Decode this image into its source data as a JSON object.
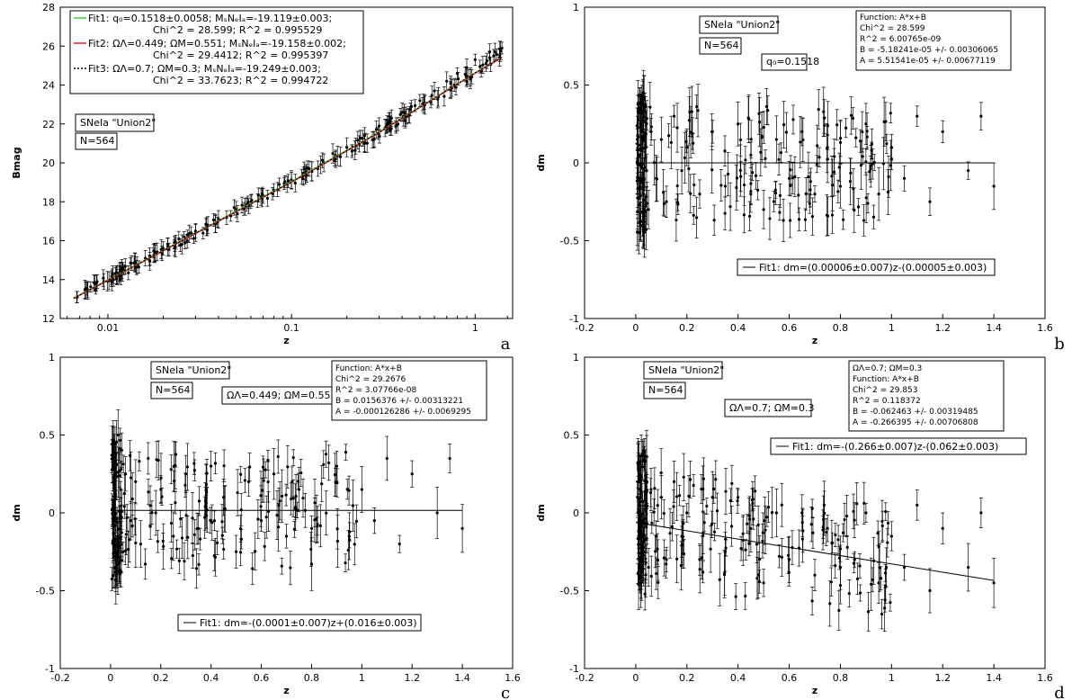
{
  "figure": {
    "panels": [
      {
        "id": "a",
        "letter": "a",
        "labels": {
          "sample": "SNeIa \"Union2\"",
          "count": "N=564"
        },
        "legend": [
          {
            "color": "#3cc83c",
            "dash": "",
            "line1": "Fit1: q₀=0.1518±0.0058; MₛNₑIₐ=-19.119±0.003;",
            "line2": "Chi^2 = 28.599; R^2 = 0.995529"
          },
          {
            "color": "#e02020",
            "dash": "",
            "line1": "Fit2: ΩΛ=0.449; ΩM=0.551; MₛNₑIₐ=-19.158±0.002;",
            "line2": "Chi^2 = 29.4412; R^2 = 0.995397"
          },
          {
            "color": "#000000",
            "dash": "2,2",
            "line1": "Fit3: ΩΛ=0.7; ΩM=0.3; MₛNₑIₐ=-19.249±0.003;",
            "line2": "Chi^2 = 33.7623; R^2 = 0.994722"
          }
        ]
      },
      {
        "id": "b",
        "letter": "b",
        "labels": {
          "sample": "SNeIa \"Union2\"",
          "count": "N=564",
          "param": "q₀=0.1518"
        },
        "stats": [
          "Function: A*x+B",
          "Chi^2 = 28.599",
          "R^2 = 6.00765e-09",
          "B = -5.18241e-05 +/- 0.00306065",
          "A = 5.51541e-05 +/- 0.00677119"
        ],
        "fit_legend": "Fit1: dm=(0.00006±0.007)z-(0.00005±0.003)"
      },
      {
        "id": "c",
        "letter": "c",
        "labels": {
          "sample": "SNeIa \"Union2\"",
          "count": "N=564",
          "param": "ΩΛ=0.449; ΩM=0.551"
        },
        "stats": [
          "Function: A*x+B",
          "Chi^2 = 29.2676",
          "R^2 = 3.07766e-08",
          "B = 0.0156376 +/- 0.00313221",
          "A = -0.000126286 +/- 0.0069295"
        ],
        "fit_legend": "Fit1: dm=-(0.0001±0.007)z+(0.016±0.003)"
      },
      {
        "id": "d",
        "letter": "d",
        "labels": {
          "sample": "SNeIa \"Union2\"",
          "count": "N=564",
          "param": "ΩΛ=0.7; ΩM=0.3"
        },
        "stats": [
          "ΩΛ=0.7; ΩM=0.3",
          "Function: A*x+B",
          "Chi^2 = 29.853",
          "R^2 = 0.118372",
          "B = -0.062463 +/- 0.00319485",
          "A = -0.266395 +/- 0.00706808"
        ],
        "fit_legend": "Fit1: dm=-(0.266±0.007)z-(0.062±0.003)"
      }
    ]
  },
  "chart_data": [
    {
      "type": "scatter",
      "panel": "a",
      "xlabel": "z",
      "ylabel": "Bmag",
      "xscale": "log",
      "xlim": [
        0.0055,
        1.6
      ],
      "ylim": [
        12,
        28
      ],
      "xticks": [
        0.01,
        0.1,
        1
      ],
      "xtick_labels": [
        "0.01",
        "0.1",
        "1"
      ],
      "yticks": [
        12,
        14,
        16,
        18,
        20,
        22,
        24,
        26,
        28
      ],
      "points": [
        [
          0.0068,
          13.1
        ],
        [
          0.0075,
          13.5
        ],
        [
          0.0085,
          13.8
        ],
        [
          0.0095,
          13.9
        ],
        [
          0.011,
          14.3
        ],
        [
          0.012,
          14.4
        ],
        [
          0.014,
          14.9
        ],
        [
          0.016,
          15.1
        ],
        [
          0.018,
          15.4
        ],
        [
          0.02,
          15.6
        ],
        [
          0.023,
          15.9
        ],
        [
          0.026,
          16.2
        ],
        [
          0.03,
          16.5
        ],
        [
          0.035,
          16.8
        ],
        [
          0.04,
          17.1
        ],
        [
          0.05,
          17.6
        ],
        [
          0.06,
          18.0
        ],
        [
          0.07,
          18.3
        ],
        [
          0.08,
          18.6
        ],
        [
          0.1,
          19.1
        ],
        [
          0.12,
          19.5
        ],
        [
          0.15,
          20.0
        ],
        [
          0.2,
          20.8
        ],
        [
          0.25,
          21.4
        ],
        [
          0.3,
          21.9
        ],
        [
          0.35,
          22.3
        ],
        [
          0.4,
          22.6
        ],
        [
          0.45,
          22.9
        ],
        [
          0.5,
          23.2
        ],
        [
          0.6,
          23.7
        ],
        [
          0.7,
          24.2
        ],
        [
          0.8,
          24.6
        ],
        [
          0.9,
          24.9
        ],
        [
          1.0,
          25.3
        ],
        [
          1.2,
          25.7
        ],
        [
          1.4,
          25.9
        ]
      ],
      "series": [
        {
          "name": "Fit1",
          "color": "#3cc83c",
          "x": [
            0.0065,
            0.01,
            0.03,
            0.1,
            0.3,
            1.0,
            1.4
          ],
          "y": [
            13.06,
            13.99,
            16.4,
            19.05,
            21.59,
            24.63,
            25.43
          ]
        },
        {
          "name": "Fit2",
          "color": "#e02020",
          "x": [
            0.0065,
            0.01,
            0.03,
            0.1,
            0.3,
            1.0,
            1.4
          ],
          "y": [
            13.02,
            13.95,
            16.36,
            19.0,
            21.55,
            24.6,
            25.4
          ]
        },
        {
          "name": "Fit3",
          "color": "#000000",
          "x": [
            0.0065,
            0.01,
            0.03,
            0.1,
            0.3,
            1.0,
            1.4
          ],
          "y": [
            13.04,
            13.97,
            16.38,
            19.02,
            21.57,
            24.62,
            25.42
          ]
        }
      ]
    },
    {
      "type": "scatter",
      "panel": "b",
      "xlabel": "z",
      "ylabel": "dm",
      "xlim": [
        -0.2,
        1.6
      ],
      "ylim": [
        -1,
        1
      ],
      "xticks": [
        -0.2,
        0,
        0.2,
        0.4,
        0.6,
        0.8,
        1,
        1.2,
        1.4,
        1.6
      ],
      "yticks": [
        -1,
        -0.5,
        0,
        0.5,
        1
      ],
      "ytick_labels": [
        "-1",
        "-0.5",
        "0",
        "0.5",
        "1"
      ],
      "points": [
        [
          0.01,
          0.35
        ],
        [
          0.02,
          -0.4
        ],
        [
          0.02,
          0.25
        ],
        [
          0.03,
          -0.2
        ],
        [
          0.03,
          0.45
        ],
        [
          0.04,
          0.1
        ],
        [
          0.05,
          -0.3
        ],
        [
          0.06,
          0.2
        ],
        [
          0.08,
          -0.1
        ],
        [
          0.1,
          0.15
        ],
        [
          0.12,
          -0.25
        ],
        [
          0.15,
          0.3
        ],
        [
          0.18,
          -0.05
        ],
        [
          0.2,
          0.1
        ],
        [
          0.25,
          -0.2
        ],
        [
          0.3,
          0.2
        ],
        [
          0.35,
          -0.15
        ],
        [
          0.4,
          0.25
        ],
        [
          0.45,
          0.05
        ],
        [
          0.5,
          -0.3
        ],
        [
          0.55,
          0.15
        ],
        [
          0.6,
          -0.1
        ],
        [
          0.65,
          0.2
        ],
        [
          0.7,
          -0.2
        ],
        [
          0.75,
          0.1
        ],
        [
          0.8,
          -0.15
        ],
        [
          0.9,
          0.25
        ],
        [
          0.95,
          -0.2
        ],
        [
          1.0,
          0.1
        ],
        [
          1.05,
          -0.1
        ],
        [
          1.1,
          0.3
        ],
        [
          1.15,
          -0.25
        ],
        [
          1.2,
          0.2
        ],
        [
          1.3,
          -0.05
        ],
        [
          1.35,
          0.3
        ],
        [
          1.4,
          -0.15
        ]
      ],
      "fit": {
        "slope": 6e-05,
        "intercept": -5e-05,
        "x": [
          0.0,
          1.4
        ]
      }
    },
    {
      "type": "scatter",
      "panel": "c",
      "xlabel": "z",
      "ylabel": "dm",
      "xlim": [
        -0.2,
        1.6
      ],
      "ylim": [
        -1,
        1
      ],
      "xticks": [
        -0.2,
        0,
        0.2,
        0.4,
        0.6,
        0.8,
        1,
        1.2,
        1.4,
        1.6
      ],
      "yticks": [
        -1,
        -0.5,
        0,
        0.5,
        1
      ],
      "ytick_labels": [
        "-1",
        "-0.5",
        "0",
        "0.5",
        "1"
      ],
      "points": [
        [
          0.01,
          0.4
        ],
        [
          0.02,
          -0.35
        ],
        [
          0.02,
          0.3
        ],
        [
          0.03,
          -0.15
        ],
        [
          0.03,
          0.5
        ],
        [
          0.04,
          0.15
        ],
        [
          0.05,
          -0.25
        ],
        [
          0.06,
          0.25
        ],
        [
          0.08,
          -0.05
        ],
        [
          0.1,
          0.2
        ],
        [
          0.12,
          -0.2
        ],
        [
          0.15,
          0.35
        ],
        [
          0.18,
          0.0
        ],
        [
          0.2,
          0.15
        ],
        [
          0.25,
          -0.15
        ],
        [
          0.3,
          0.25
        ],
        [
          0.35,
          -0.1
        ],
        [
          0.4,
          0.3
        ],
        [
          0.45,
          0.1
        ],
        [
          0.5,
          -0.25
        ],
        [
          0.55,
          0.2
        ],
        [
          0.6,
          -0.05
        ],
        [
          0.65,
          0.25
        ],
        [
          0.7,
          -0.15
        ],
        [
          0.75,
          0.15
        ],
        [
          0.8,
          -0.1
        ],
        [
          0.9,
          0.3
        ],
        [
          0.95,
          -0.15
        ],
        [
          1.0,
          0.15
        ],
        [
          1.05,
          -0.05
        ],
        [
          1.1,
          0.35
        ],
        [
          1.15,
          -0.2
        ],
        [
          1.2,
          0.25
        ],
        [
          1.3,
          0.0
        ],
        [
          1.35,
          0.35
        ],
        [
          1.4,
          -0.1
        ]
      ],
      "fit": {
        "slope": -0.0001,
        "intercept": 0.016,
        "x": [
          0.0,
          1.4
        ]
      }
    },
    {
      "type": "scatter",
      "panel": "d",
      "xlabel": "z",
      "ylabel": "dm",
      "xlim": [
        -0.2,
        1.6
      ],
      "ylim": [
        -1,
        1
      ],
      "xticks": [
        -0.2,
        0,
        0.2,
        0.4,
        0.6,
        0.8,
        1,
        1.2,
        1.4,
        1.6
      ],
      "yticks": [
        -1,
        -0.5,
        0,
        0.5,
        1
      ],
      "ytick_labels": [
        "-1",
        "-0.5",
        "0",
        "0.5",
        "1"
      ],
      "points": [
        [
          0.01,
          0.3
        ],
        [
          0.02,
          -0.45
        ],
        [
          0.02,
          0.2
        ],
        [
          0.03,
          -0.25
        ],
        [
          0.03,
          0.4
        ],
        [
          0.04,
          0.05
        ],
        [
          0.05,
          -0.35
        ],
        [
          0.06,
          0.15
        ],
        [
          0.08,
          -0.15
        ],
        [
          0.1,
          0.1
        ],
        [
          0.12,
          -0.3
        ],
        [
          0.15,
          0.2
        ],
        [
          0.18,
          -0.15
        ],
        [
          0.2,
          0.0
        ],
        [
          0.25,
          -0.3
        ],
        [
          0.3,
          0.1
        ],
        [
          0.35,
          -0.25
        ],
        [
          0.4,
          0.1
        ],
        [
          0.45,
          -0.1
        ],
        [
          0.5,
          -0.45
        ],
        [
          0.55,
          0.0
        ],
        [
          0.6,
          -0.3
        ],
        [
          0.65,
          0.0
        ],
        [
          0.7,
          -0.4
        ],
        [
          0.75,
          -0.1
        ],
        [
          0.8,
          -0.35
        ],
        [
          0.9,
          0.0
        ],
        [
          0.95,
          -0.45
        ],
        [
          1.0,
          -0.15
        ],
        [
          1.05,
          -0.35
        ],
        [
          1.1,
          0.05
        ],
        [
          1.15,
          -0.5
        ],
        [
          1.2,
          -0.1
        ],
        [
          1.3,
          -0.35
        ],
        [
          1.35,
          0.0
        ],
        [
          1.4,
          -0.45
        ]
      ],
      "fit": {
        "slope": -0.266,
        "intercept": -0.062,
        "x": [
          0.0,
          1.4
        ]
      }
    }
  ]
}
